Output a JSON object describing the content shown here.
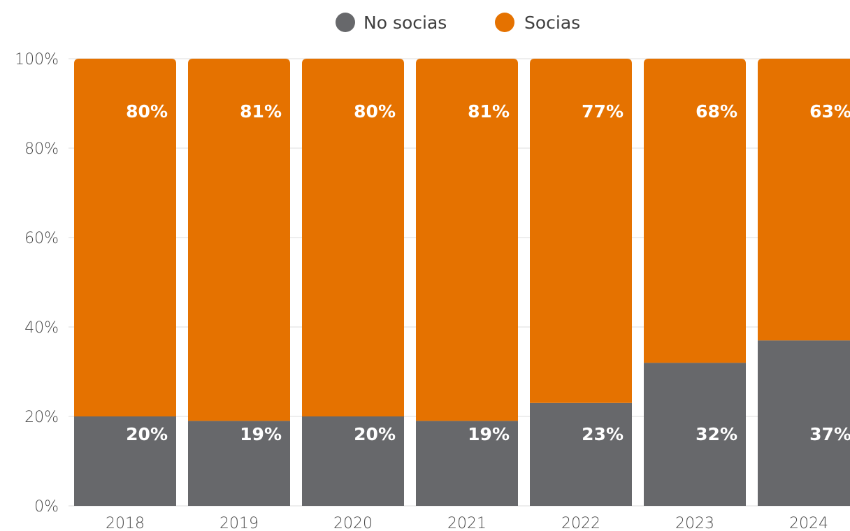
{
  "chart_data": {
    "type": "bar",
    "stacked": true,
    "percent_scale": true,
    "categories": [
      "2018",
      "2019",
      "2020",
      "2021",
      "2022",
      "2023",
      "2024"
    ],
    "series": [
      {
        "name": "No socias",
        "color": "#67686b",
        "values": [
          20,
          19,
          20,
          19,
          23,
          32,
          37
        ],
        "labels": [
          "20%",
          "19%",
          "20%",
          "19%",
          "23%",
          "32%",
          "37%"
        ]
      },
      {
        "name": "Socias",
        "color": "#e57200",
        "values": [
          80,
          81,
          80,
          81,
          77,
          68,
          63
        ],
        "labels": [
          "80%",
          "81%",
          "80%",
          "81%",
          "77%",
          "68%",
          "63%"
        ]
      }
    ],
    "yticks": [
      "0%",
      "20%",
      "40%",
      "60%",
      "80%",
      "100%"
    ],
    "ylim": [
      0,
      100
    ],
    "grid": true,
    "legend_position": "top-center"
  }
}
